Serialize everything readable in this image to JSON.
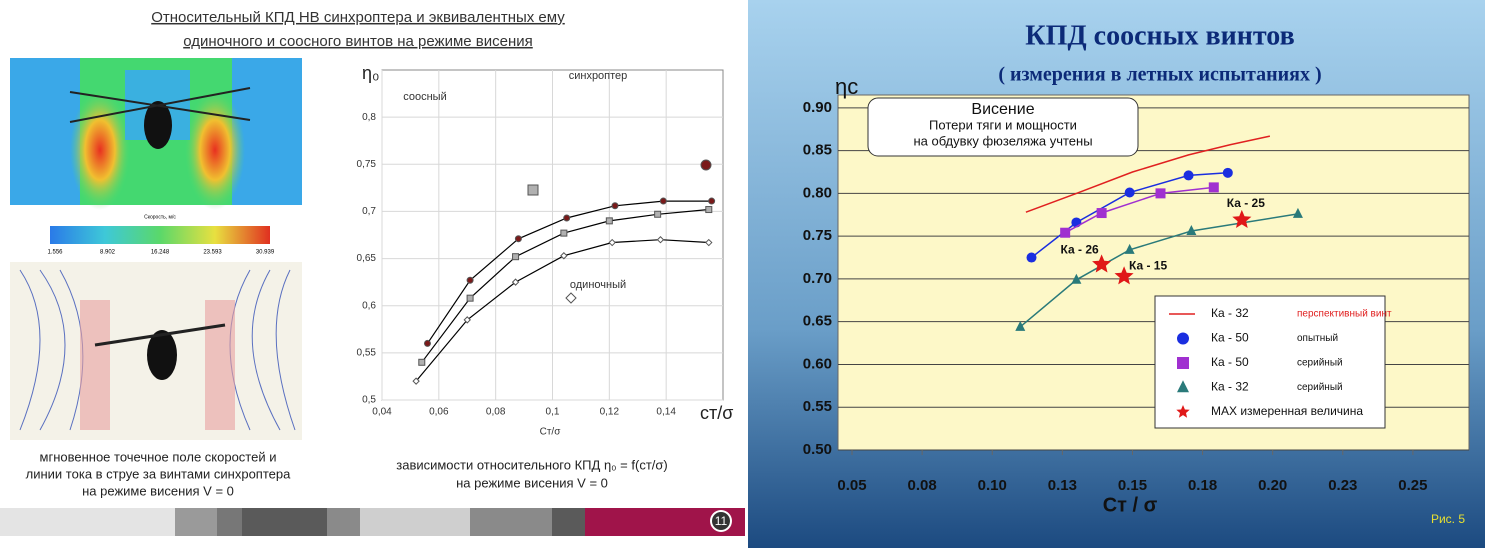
{
  "left_slide": {
    "title": [
      "Относительный КПД НВ синхроптера и эквивалентных ему",
      "одиночного и соосного винтов на режиме висения"
    ],
    "colorbar": {
      "title": "Скорость, м/с",
      "ticks": [
        1.556,
        8.902,
        16.248,
        23.593,
        30.939
      ]
    },
    "caption_left": [
      "мгновенное точечное поле скоростей и",
      "линии тока в струе за винтами синхроптера",
      "на режиме висения V = 0"
    ],
    "caption_right": [
      "зависимости относительного КПД η₀ = f(cт/σ)",
      "на режиме висения  V = 0"
    ],
    "page_number": "11"
  },
  "right_slide": {
    "title": "КПД  соосных  винтов",
    "subtitle": "( измерения в летных испытаниях )",
    "figure_label": "Рис. 5"
  },
  "chart_data": [
    {
      "type": "line",
      "y_label": "η₀",
      "x_label": "cт/σ",
      "x_label_small": "Cт/σ",
      "xlim": [
        0.04,
        0.16
      ],
      "ylim": [
        0.5,
        0.85
      ],
      "xticks": [
        {
          "value": 0.04,
          "label": "0,04"
        },
        {
          "value": 0.06,
          "label": "0,06"
        },
        {
          "value": 0.08,
          "label": "0,08"
        },
        {
          "value": 0.1,
          "label": "0,1"
        },
        {
          "value": 0.12,
          "label": "0,12"
        },
        {
          "value": 0.14,
          "label": "0,14"
        }
      ],
      "yticks": [
        {
          "value": 0.5,
          "label": "0,5"
        },
        {
          "value": 0.55,
          "label": "0,55"
        },
        {
          "value": 0.6,
          "label": "0,6"
        },
        {
          "value": 0.65,
          "label": "0,65"
        },
        {
          "value": 0.7,
          "label": "0,7"
        },
        {
          "value": 0.75,
          "label": "0,75"
        },
        {
          "value": 0.8,
          "label": "0,8"
        }
      ],
      "grid": "both",
      "series": [
        {
          "name": "соосный",
          "color": "#b0b0b0",
          "line_color": "#000000",
          "marker": "square",
          "x": [
            0.054,
            0.071,
            0.087,
            0.104,
            0.12,
            0.137,
            0.155
          ],
          "values": [
            0.54,
            0.608,
            0.652,
            0.677,
            0.69,
            0.697,
            0.702
          ]
        },
        {
          "name": "синхроптер",
          "color": "#7a1a1a",
          "line_color": "#000000",
          "marker": "circle",
          "x": [
            0.056,
            0.071,
            0.088,
            0.105,
            0.122,
            0.139,
            0.156
          ],
          "values": [
            0.56,
            0.627,
            0.671,
            0.693,
            0.706,
            0.711,
            0.711
          ]
        },
        {
          "name": "одиночный",
          "color": "#ffffff",
          "line_color": "#000000",
          "marker": "diamond",
          "x": [
            0.052,
            0.07,
            0.087,
            0.104,
            0.121,
            0.138,
            0.155
          ],
          "values": [
            0.52,
            0.585,
            0.625,
            0.653,
            0.667,
            0.67,
            0.667
          ]
        }
      ]
    },
    {
      "type": "line",
      "y_label": "ηc",
      "x_label": "Cт / σ",
      "xlim": [
        0.045,
        0.27
      ],
      "ylim": [
        0.5,
        0.915
      ],
      "xticks": [
        0.05,
        {
          "value": 0.075,
          "label": "0.08"
        },
        {
          "value": 0.1,
          "label": "0.10"
        },
        {
          "value": 0.125,
          "label": "0.13"
        },
        0.15,
        {
          "value": 0.175,
          "label": "0.18"
        },
        {
          "value": 0.2,
          "label": "0.20"
        },
        {
          "value": 0.225,
          "label": "0.23"
        },
        0.25
      ],
      "yticks": [
        {
          "value": 0.5,
          "label": "0.50"
        },
        0.55,
        {
          "value": 0.6,
          "label": "0.60"
        },
        0.65,
        {
          "value": 0.7,
          "label": "0.70"
        },
        0.75,
        {
          "value": 0.8,
          "label": "0.80"
        },
        0.85,
        {
          "value": 0.9,
          "label": "0.90"
        }
      ],
      "grid": "y",
      "legend": "lower right",
      "annotation": [
        "Висение",
        "Потери тяги и мощности",
        "на обдувку фюзеляжа учтены"
      ],
      "series": [
        {
          "name": "Ка - 32",
          "detail": "перспективный винт",
          "color": "#e02020",
          "marker": "none",
          "line": true,
          "x": [
            0.112,
            0.13,
            0.15,
            0.17,
            0.185,
            0.199
          ],
          "values": [
            0.778,
            0.8,
            0.825,
            0.845,
            0.857,
            0.867
          ]
        },
        {
          "name": "Ка - 50",
          "detail": "опытный",
          "color": "#1a2ee0",
          "marker": "circle",
          "line": true,
          "x": [
            0.114,
            0.13,
            0.149,
            0.17,
            0.184
          ],
          "values": [
            0.725,
            0.766,
            0.801,
            0.821,
            0.824
          ]
        },
        {
          "name": "Ка - 50",
          "detail": "серийный",
          "color": "#a030d0",
          "marker": "square",
          "line": true,
          "x": [
            0.126,
            0.139,
            0.16,
            0.179
          ],
          "values": [
            0.754,
            0.777,
            0.8,
            0.807
          ]
        },
        {
          "name": "Ка - 32",
          "detail": "серийный",
          "color": "#2a7a7a",
          "marker": "triangle",
          "line": true,
          "x": [
            0.11,
            0.13,
            0.149,
            0.171,
            0.209
          ],
          "values": [
            0.644,
            0.699,
            0.734,
            0.756,
            0.776
          ]
        },
        {
          "name": "MAX измеренная величина",
          "color": "#e01818",
          "marker": "star",
          "line": false,
          "x": [
            0.139,
            0.147,
            0.189
          ],
          "values": [
            0.717,
            0.703,
            0.769
          ],
          "point_labels": [
            "Ка - 26",
            "Ка - 15",
            "Ка - 25"
          ]
        }
      ]
    }
  ]
}
